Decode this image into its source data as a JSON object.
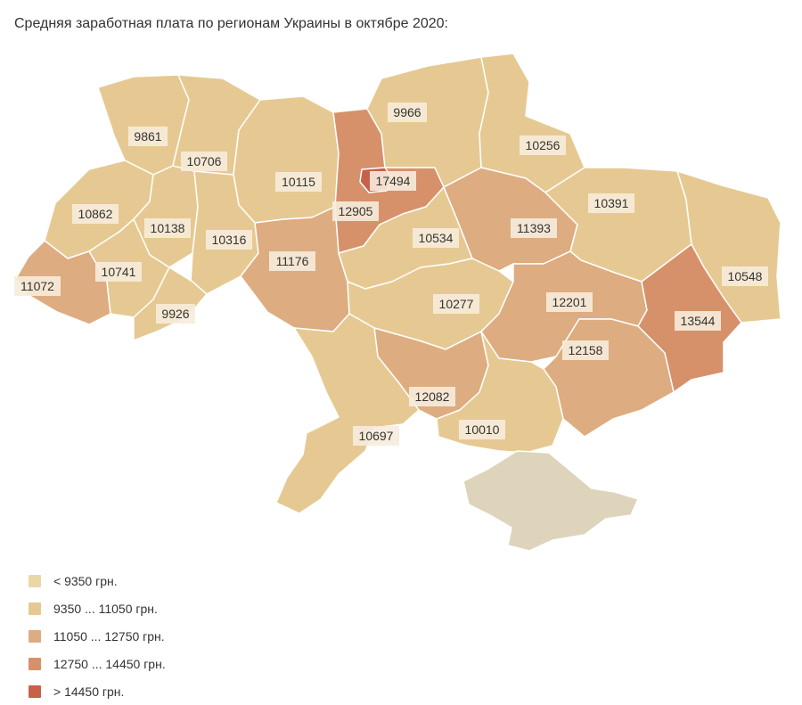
{
  "title": "Средняя заработная плата по регионам Украины в октябре 2020:",
  "legend": [
    {
      "label": "< 9350 грн.",
      "color": "#ead7a8"
    },
    {
      "label": "9350 ... 11050 грн.",
      "color": "#e6c992"
    },
    {
      "label": "11050 ... 12750 грн.",
      "color": "#ddac80"
    },
    {
      "label": "12750 ... 14450 грн.",
      "color": "#d6916b"
    },
    {
      "label": "> 14450 грн.",
      "color": "#c8614a"
    }
  ],
  "no_data_color": "#ddd4bb",
  "regions": [
    {
      "key": "volyn",
      "value": "9861"
    },
    {
      "key": "rivne",
      "value": "10706"
    },
    {
      "key": "zhytomyr",
      "value": "10115"
    },
    {
      "key": "kyiv_obl",
      "value": "12905"
    },
    {
      "key": "kyiv_city",
      "value": "17494"
    },
    {
      "key": "chernihiv",
      "value": "9966"
    },
    {
      "key": "sumy",
      "value": "10256"
    },
    {
      "key": "lviv",
      "value": "10862"
    },
    {
      "key": "ternopil",
      "value": "10138"
    },
    {
      "key": "khmelnytskyi",
      "value": "10316"
    },
    {
      "key": "vinnytsia",
      "value": "11176"
    },
    {
      "key": "cherkasy",
      "value": "10534"
    },
    {
      "key": "poltava",
      "value": "11393"
    },
    {
      "key": "kharkiv",
      "value": "10391"
    },
    {
      "key": "luhansk",
      "value": "10548"
    },
    {
      "key": "zakarpattia",
      "value": "11072"
    },
    {
      "key": "ivano_frankivsk",
      "value": "10741"
    },
    {
      "key": "chernivtsi",
      "value": "9926"
    },
    {
      "key": "kirovohrad",
      "value": "10277"
    },
    {
      "key": "dnipro",
      "value": "12201"
    },
    {
      "key": "donetsk",
      "value": "13544"
    },
    {
      "key": "zaporizhzhia",
      "value": "12158"
    },
    {
      "key": "mykolaiv",
      "value": "12082"
    },
    {
      "key": "odesa",
      "value": "10697"
    },
    {
      "key": "kherson",
      "value": "10010"
    },
    {
      "key": "crimea",
      "value": ""
    }
  ]
}
